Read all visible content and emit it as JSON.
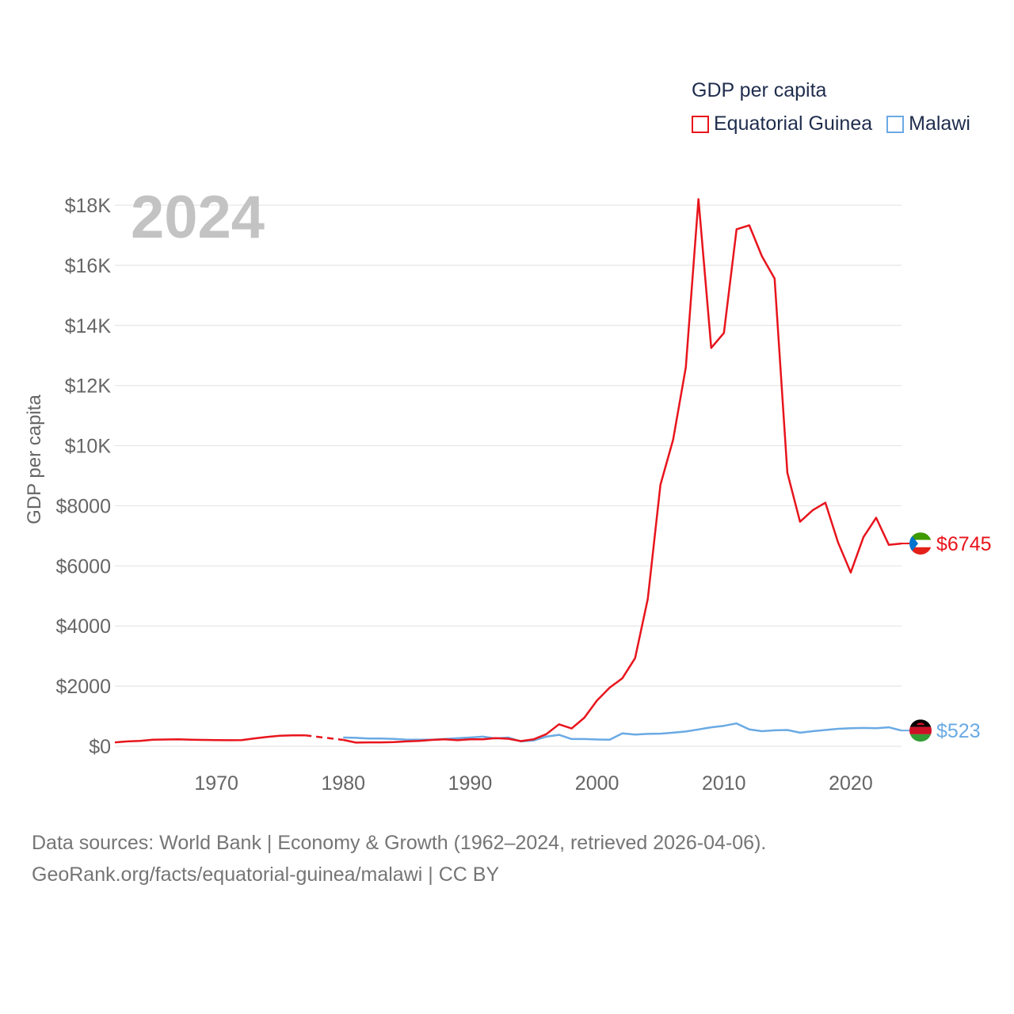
{
  "legend": {
    "title": "GDP per capita",
    "items": [
      {
        "name": "Equatorial Guinea",
        "color": "#e8141c"
      },
      {
        "name": "Malawi",
        "color": "#6aaae4"
      }
    ]
  },
  "year_label": "2024",
  "end_labels": {
    "equatorial_guinea": "$6745",
    "malawi": "$523"
  },
  "footer": {
    "line1": "Data sources: World Bank | Economy & Growth (1962–2024, retrieved 2026-04-06).",
    "line2": "GeoRank.org/facts/equatorial-guinea/malawi | CC BY"
  },
  "chart_data": {
    "type": "line",
    "title": "GDP per capita",
    "ylabel": "GDP per capita",
    "xlabel": "",
    "xlim": [
      1962,
      2024
    ],
    "ylim": [
      0,
      18000
    ],
    "yticks": [
      0,
      2000,
      4000,
      6000,
      8000,
      10000,
      12000,
      14000,
      16000,
      18000
    ],
    "ytick_labels": [
      "$0",
      "$2000",
      "$4000",
      "$6000",
      "$8000",
      "$10K",
      "$12K",
      "$14K",
      "$16K",
      "$18K"
    ],
    "xticks": [
      1970,
      1980,
      1990,
      2000,
      2010,
      2020
    ],
    "xtick_labels": [
      "1970",
      "1980",
      "1990",
      "2000",
      "2010",
      "2020"
    ],
    "gap": {
      "series": "Equatorial Guinea",
      "from": 1977,
      "to": 1980,
      "style": "dashed"
    },
    "series": [
      {
        "name": "Equatorial Guinea",
        "color": "#e8141c",
        "points": [
          [
            1962,
            130
          ],
          [
            1963,
            160
          ],
          [
            1964,
            180
          ],
          [
            1965,
            220
          ],
          [
            1966,
            225
          ],
          [
            1967,
            230
          ],
          [
            1968,
            215
          ],
          [
            1969,
            210
          ],
          [
            1970,
            205
          ],
          [
            1971,
            200
          ],
          [
            1972,
            205
          ],
          [
            1973,
            260
          ],
          [
            1974,
            310
          ],
          [
            1975,
            350
          ],
          [
            1976,
            360
          ],
          [
            1977,
            365
          ],
          [
            1980,
            210
          ],
          [
            1981,
            120
          ],
          [
            1982,
            130
          ],
          [
            1983,
            130
          ],
          [
            1984,
            140
          ],
          [
            1985,
            160
          ],
          [
            1986,
            180
          ],
          [
            1987,
            210
          ],
          [
            1988,
            230
          ],
          [
            1989,
            200
          ],
          [
            1990,
            230
          ],
          [
            1991,
            230
          ],
          [
            1992,
            270
          ],
          [
            1993,
            250
          ],
          [
            1994,
            170
          ],
          [
            1995,
            230
          ],
          [
            1996,
            400
          ],
          [
            1997,
            730
          ],
          [
            1998,
            590
          ],
          [
            1999,
            950
          ],
          [
            2000,
            1520
          ],
          [
            2001,
            1950
          ],
          [
            2002,
            2260
          ],
          [
            2003,
            2930
          ],
          [
            2004,
            4900
          ],
          [
            2005,
            8700
          ],
          [
            2006,
            10200
          ],
          [
            2007,
            12600
          ],
          [
            2008,
            18200
          ],
          [
            2009,
            13250
          ],
          [
            2010,
            13750
          ],
          [
            2011,
            17200
          ],
          [
            2012,
            17330
          ],
          [
            2013,
            16300
          ],
          [
            2014,
            15560
          ],
          [
            2015,
            9100
          ],
          [
            2016,
            7470
          ],
          [
            2017,
            7850
          ],
          [
            2018,
            8100
          ],
          [
            2019,
            6780
          ],
          [
            2020,
            5780
          ],
          [
            2021,
            6960
          ],
          [
            2022,
            7600
          ],
          [
            2023,
            6700
          ],
          [
            2024,
            6745
          ]
        ]
      },
      {
        "name": "Malawi",
        "color": "#6aaae4",
        "points": [
          [
            1980,
            290
          ],
          [
            1981,
            280
          ],
          [
            1982,
            255
          ],
          [
            1983,
            255
          ],
          [
            1984,
            245
          ],
          [
            1985,
            220
          ],
          [
            1986,
            220
          ],
          [
            1987,
            220
          ],
          [
            1988,
            240
          ],
          [
            1989,
            265
          ],
          [
            1990,
            290
          ],
          [
            1991,
            320
          ],
          [
            1992,
            260
          ],
          [
            1993,
            290
          ],
          [
            1994,
            160
          ],
          [
            1995,
            190
          ],
          [
            1996,
            320
          ],
          [
            1997,
            380
          ],
          [
            1998,
            240
          ],
          [
            1999,
            240
          ],
          [
            2000,
            225
          ],
          [
            2001,
            215
          ],
          [
            2002,
            430
          ],
          [
            2003,
            390
          ],
          [
            2004,
            410
          ],
          [
            2005,
            420
          ],
          [
            2006,
            450
          ],
          [
            2007,
            490
          ],
          [
            2008,
            560
          ],
          [
            2009,
            630
          ],
          [
            2010,
            680
          ],
          [
            2011,
            760
          ],
          [
            2012,
            560
          ],
          [
            2013,
            500
          ],
          [
            2014,
            530
          ],
          [
            2015,
            540
          ],
          [
            2016,
            450
          ],
          [
            2017,
            500
          ],
          [
            2018,
            540
          ],
          [
            2019,
            580
          ],
          [
            2020,
            600
          ],
          [
            2021,
            610
          ],
          [
            2022,
            600
          ],
          [
            2023,
            630
          ],
          [
            2024,
            523
          ]
        ]
      }
    ]
  }
}
